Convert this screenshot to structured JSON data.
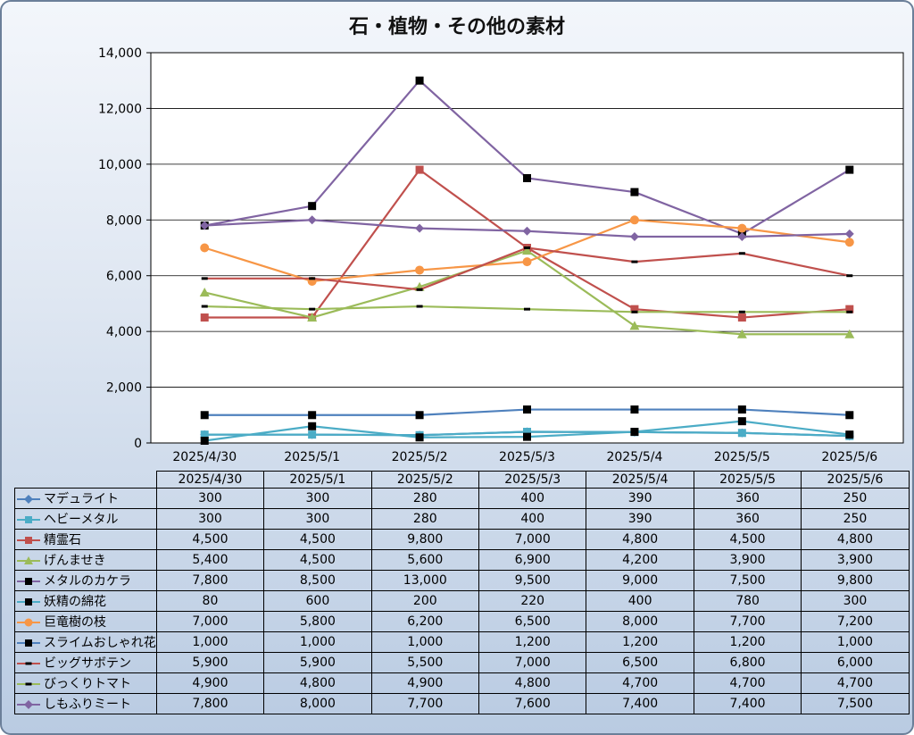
{
  "chart_data": {
    "type": "line",
    "title": "石・植物・その他の素材",
    "categories": [
      "2025/4/30",
      "2025/5/1",
      "2025/5/2",
      "2025/5/3",
      "2025/5/4",
      "2025/5/5",
      "2025/5/6"
    ],
    "ylim": [
      0,
      14000
    ],
    "yticks": [
      "0",
      "2,000",
      "4,000",
      "6,000",
      "8,000",
      "10,000",
      "12,000",
      "14,000"
    ],
    "grid": true,
    "legend": "data-table",
    "series": [
      {
        "name": "マデュライト",
        "values": [
          300,
          300,
          280,
          400,
          390,
          360,
          250
        ],
        "labels": [
          "300",
          "300",
          "280",
          "400",
          "390",
          "360",
          "250"
        ],
        "color": "#4f81bd",
        "marker": "diamond"
      },
      {
        "name": "ヘビーメタル",
        "values": [
          300,
          300,
          280,
          400,
          390,
          360,
          250
        ],
        "labels": [
          "300",
          "300",
          "280",
          "400",
          "390",
          "360",
          "250"
        ],
        "color": "#4bacc6",
        "marker": "square"
      },
      {
        "name": "精霊石",
        "values": [
          4500,
          4500,
          9800,
          7000,
          4800,
          4500,
          4800
        ],
        "labels": [
          "4,500",
          "4,500",
          "9,800",
          "7,000",
          "4,800",
          "4,500",
          "4,800"
        ],
        "color": "#c0504d",
        "marker": "square"
      },
      {
        "name": "げんませき",
        "values": [
          5400,
          4500,
          5600,
          6900,
          4200,
          3900,
          3900
        ],
        "labels": [
          "5,400",
          "4,500",
          "5,600",
          "6,900",
          "4,200",
          "3,900",
          "3,900"
        ],
        "color": "#9bbb59",
        "marker": "triangle"
      },
      {
        "name": "メタルのカケラ",
        "values": [
          7800,
          8500,
          13000,
          9500,
          9000,
          7500,
          9800
        ],
        "labels": [
          "7,800",
          "8,500",
          "13,000",
          "9,500",
          "9,000",
          "7,500",
          "9,800"
        ],
        "color": "#8064a2",
        "marker": "blacksquare"
      },
      {
        "name": "妖精の綿花",
        "values": [
          80,
          600,
          200,
          220,
          400,
          780,
          300
        ],
        "labels": [
          "80",
          "600",
          "200",
          "220",
          "400",
          "780",
          "300"
        ],
        "color": "#4bacc6",
        "marker": "blacksquare"
      },
      {
        "name": "巨竜樹の枝",
        "values": [
          7000,
          5800,
          6200,
          6500,
          8000,
          7700,
          7200
        ],
        "labels": [
          "7,000",
          "5,800",
          "6,200",
          "6,500",
          "8,000",
          "7,700",
          "7,200"
        ],
        "color": "#f79646",
        "marker": "circle"
      },
      {
        "name": "スライムおしゃれ花",
        "values": [
          1000,
          1000,
          1000,
          1200,
          1200,
          1200,
          1000
        ],
        "labels": [
          "1,000",
          "1,000",
          "1,000",
          "1,200",
          "1,200",
          "1,200",
          "1,000"
        ],
        "color": "#4f81bd",
        "marker": "blacksquare"
      },
      {
        "name": "ビッグサボテン",
        "values": [
          5900,
          5900,
          5500,
          7000,
          6500,
          6800,
          6000
        ],
        "labels": [
          "5,900",
          "5,900",
          "5,500",
          "7,000",
          "6,500",
          "6,800",
          "6,000"
        ],
        "color": "#c0504d",
        "marker": "dash"
      },
      {
        "name": "びっくりトマト",
        "values": [
          4900,
          4800,
          4900,
          4800,
          4700,
          4700,
          4700
        ],
        "labels": [
          "4,900",
          "4,800",
          "4,900",
          "4,800",
          "4,700",
          "4,700",
          "4,700"
        ],
        "color": "#9bbb59",
        "marker": "dash"
      },
      {
        "name": "しもふりミート",
        "values": [
          7800,
          8000,
          7700,
          7600,
          7400,
          7400,
          7500
        ],
        "labels": [
          "7,800",
          "8,000",
          "7,700",
          "7,600",
          "7,400",
          "7,400",
          "7,500"
        ],
        "color": "#8064a2",
        "marker": "diamond"
      }
    ]
  }
}
